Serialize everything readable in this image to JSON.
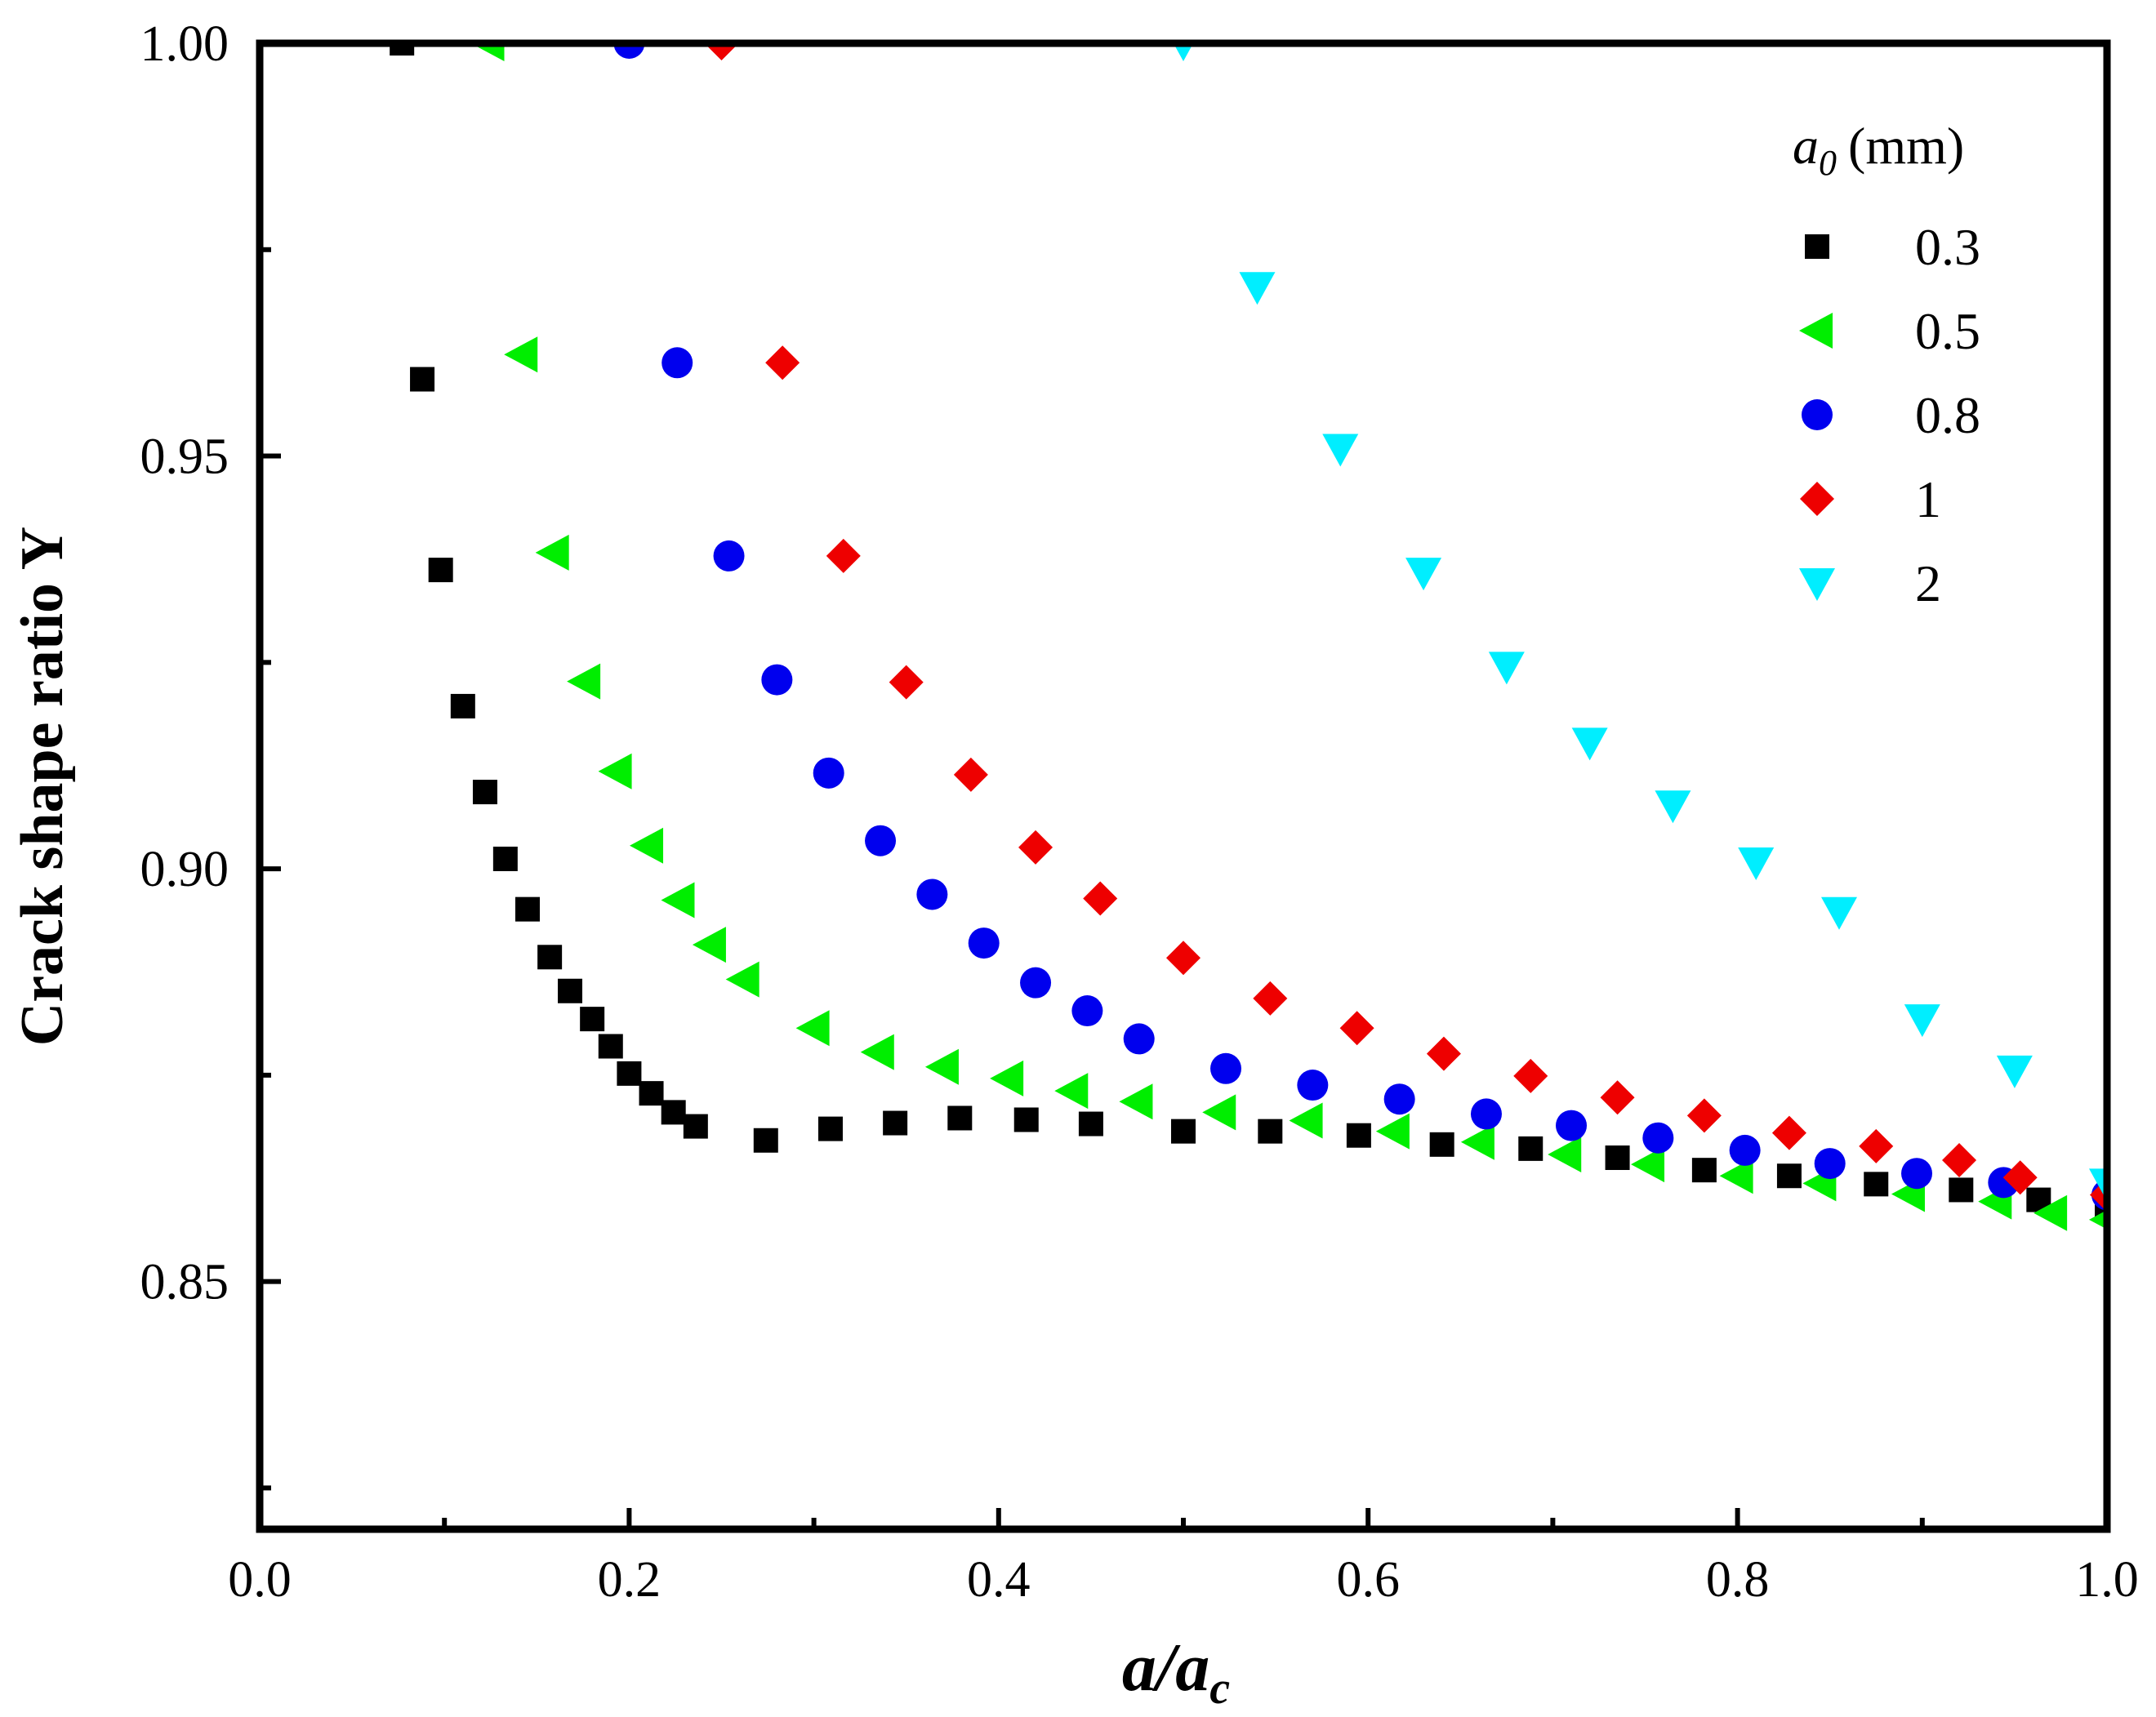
{
  "chart_data": {
    "type": "scatter",
    "title": "",
    "xlabel": "a/a",
    "xlabel_sub": "c",
    "ylabel": "Crack shape ratio Y",
    "xlim": [
      0.0,
      1.0
    ],
    "ylim": [
      0.82,
      1.0
    ],
    "x_ticks": [
      "0.0",
      "0.2",
      "0.4",
      "0.6",
      "0.8",
      "1.0"
    ],
    "y_ticks": [
      "0.85",
      "0.90",
      "0.95",
      "1.00"
    ],
    "grid": false,
    "legend_title": "a",
    "legend_title_sub": "0",
    "legend_title_unit": "(mm)",
    "legend_position": "top-right",
    "series": [
      {
        "name": "0.3",
        "marker": "square",
        "color": "#000000",
        "x": [
          0.077,
          0.088,
          0.098,
          0.11,
          0.122,
          0.133,
          0.145,
          0.157,
          0.168,
          0.18,
          0.19,
          0.2,
          0.212,
          0.224,
          0.236,
          0.274,
          0.309,
          0.344,
          0.379,
          0.415,
          0.45,
          0.5,
          0.547,
          0.595,
          0.64,
          0.688,
          0.735,
          0.782,
          0.828,
          0.875,
          0.921,
          0.963,
          1.0
        ],
        "y": [
          1.0,
          0.9593,
          0.9362,
          0.9197,
          0.9093,
          0.9012,
          0.8951,
          0.8893,
          0.8852,
          0.8818,
          0.8785,
          0.8752,
          0.8728,
          0.8705,
          0.8688,
          0.8671,
          0.8685,
          0.8692,
          0.8698,
          0.8696,
          0.8691,
          0.8682,
          0.8682,
          0.8677,
          0.8666,
          0.8661,
          0.865,
          0.8635,
          0.8628,
          0.8618,
          0.8611,
          0.8599,
          0.8587
        ]
      },
      {
        "name": "0.5",
        "marker": "triangle-left",
        "color": "#00ee00",
        "x": [
          0.124,
          0.142,
          0.159,
          0.176,
          0.193,
          0.21,
          0.227,
          0.244,
          0.262,
          0.3,
          0.335,
          0.37,
          0.405,
          0.44,
          0.475,
          0.52,
          0.567,
          0.614,
          0.66,
          0.707,
          0.752,
          0.8,
          0.845,
          0.893,
          0.94,
          0.97,
          1.0
        ],
        "y": [
          1.0,
          0.9623,
          0.9383,
          0.9227,
          0.9118,
          0.9028,
          0.8962,
          0.8908,
          0.8866,
          0.8807,
          0.8778,
          0.876,
          0.8746,
          0.8731,
          0.8718,
          0.8705,
          0.8695,
          0.8682,
          0.8669,
          0.8654,
          0.8642,
          0.8628,
          0.8619,
          0.8606,
          0.8597,
          0.8583,
          0.8575
        ]
      },
      {
        "name": "0.8",
        "marker": "circle",
        "color": "#0000ee",
        "x": [
          0.2,
          0.226,
          0.254,
          0.28,
          0.308,
          0.336,
          0.364,
          0.392,
          0.42,
          0.448,
          0.476,
          0.523,
          0.57,
          0.617,
          0.664,
          0.71,
          0.757,
          0.804,
          0.85,
          0.897,
          0.944,
          1.0
        ],
        "y": [
          1.0,
          0.9613,
          0.9379,
          0.9229,
          0.9116,
          0.9034,
          0.8969,
          0.891,
          0.8862,
          0.8828,
          0.8794,
          0.8758,
          0.8738,
          0.8721,
          0.8703,
          0.8689,
          0.8674,
          0.8659,
          0.8643,
          0.8631,
          0.862,
          0.8605
        ]
      },
      {
        "name": "1",
        "marker": "diamond",
        "color": "#ee0000",
        "x": [
          0.25,
          0.283,
          0.316,
          0.35,
          0.385,
          0.42,
          0.455,
          0.5,
          0.547,
          0.594,
          0.641,
          0.688,
          0.735,
          0.782,
          0.828,
          0.875,
          0.92,
          0.953,
          1.0
        ],
        "y": [
          1.0,
          0.9613,
          0.9379,
          0.9226,
          0.9114,
          0.9026,
          0.8964,
          0.8892,
          0.8843,
          0.8807,
          0.8776,
          0.8749,
          0.8723,
          0.8701,
          0.868,
          0.8664,
          0.8647,
          0.8626,
          0.8605
        ]
      },
      {
        "name": "2",
        "marker": "triangle-down",
        "color": "#00eeff",
        "x": [
          0.5,
          0.54,
          0.585,
          0.63,
          0.675,
          0.72,
          0.765,
          0.81,
          0.855,
          0.9,
          0.95,
          1.0
        ],
        "y": [
          1.0,
          0.9705,
          0.9509,
          0.9359,
          0.9245,
          0.9153,
          0.9077,
          0.9008,
          0.8948,
          0.8818,
          0.8756,
          0.8619
        ]
      }
    ]
  }
}
